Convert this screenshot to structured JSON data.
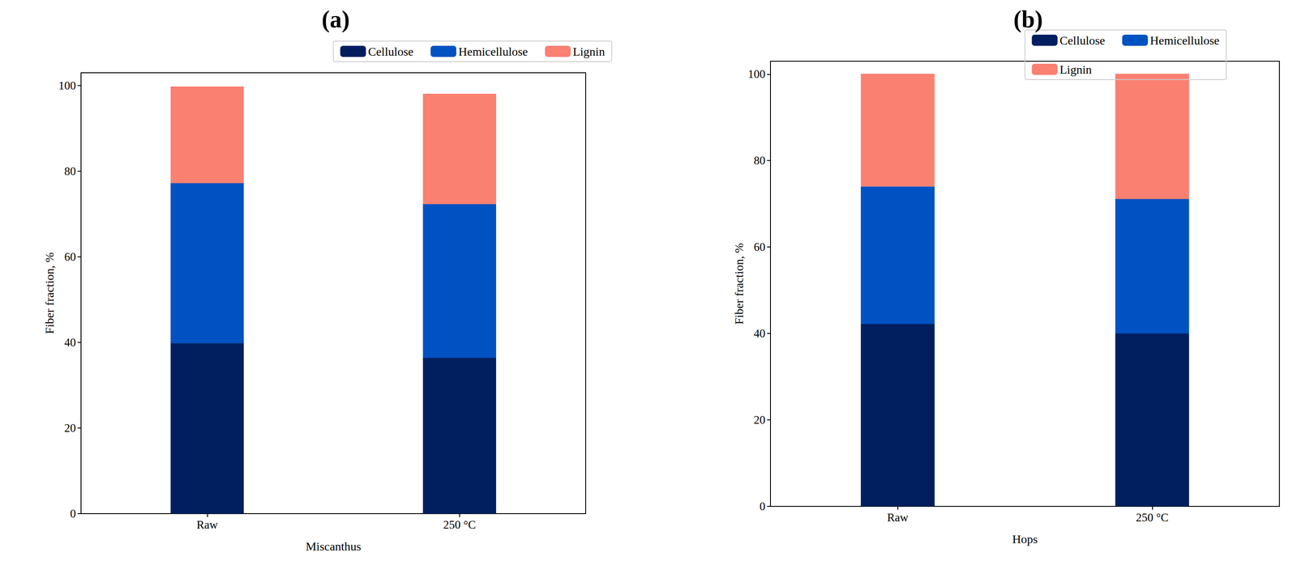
{
  "chart_data": [
    {
      "type": "bar",
      "title": "(a)",
      "stacked": true,
      "grid": false,
      "legend": "top",
      "x_label": "Miscanthus",
      "y_label": "Fiber fraction, %",
      "categories": [
        "Raw",
        "250 °C"
      ],
      "ylim": [
        0,
        103
      ],
      "yticks": [
        0,
        20,
        40,
        60,
        80,
        100
      ],
      "series": [
        {
          "name": "Cellulose",
          "color": "#011f5f",
          "values": [
            39.8,
            36.4
          ]
        },
        {
          "name": "Hemicellulose",
          "color": "#0052c2",
          "values": [
            37.4,
            35.9
          ]
        },
        {
          "name": "Lignin",
          "color": "#fa8072",
          "values": [
            22.6,
            25.8
          ]
        }
      ]
    },
    {
      "type": "bar",
      "title": "(b)",
      "stacked": true,
      "grid": false,
      "legend": "top",
      "x_label": "Hops",
      "y_label": "Fiber fraction, %",
      "categories": [
        "Raw",
        "250 °C"
      ],
      "ylim": [
        0,
        103
      ],
      "yticks": [
        0,
        20,
        40,
        60,
        80,
        100
      ],
      "series": [
        {
          "name": "Cellulose",
          "color": "#011f5f",
          "values": [
            42.2,
            40.0
          ]
        },
        {
          "name": "Hemicellulose",
          "color": "#0052c2",
          "values": [
            31.8,
            31.1
          ]
        },
        {
          "name": "Lignin",
          "color": "#fa8072",
          "values": [
            26.1,
            29.0
          ]
        }
      ]
    }
  ]
}
